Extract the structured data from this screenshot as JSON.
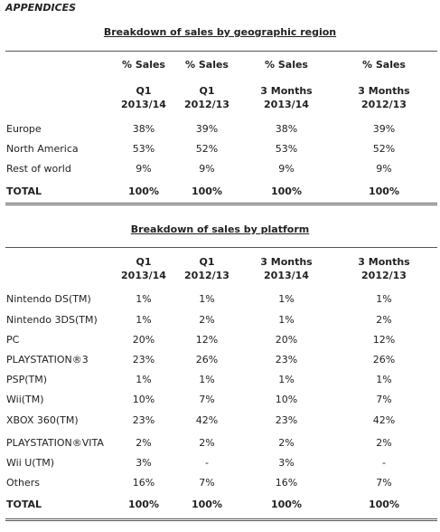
{
  "appendices": "APPENDICES",
  "region": {
    "title": "Breakdown of sales by geographic region",
    "head1": [
      "% Sales",
      "% Sales",
      "% Sales",
      "% Sales"
    ],
    "head2a": [
      "Q1",
      "Q1",
      "3 Months",
      "3 Months"
    ],
    "head2b": [
      "2013/14",
      "2012/13",
      "2013/14",
      "2012/13"
    ],
    "rows": [
      {
        "label": "Europe",
        "values": [
          "38%",
          "39%",
          "38%",
          "39%"
        ]
      },
      {
        "label": "North America",
        "values": [
          "53%",
          "52%",
          "53%",
          "52%"
        ]
      },
      {
        "label": "Rest of world",
        "values": [
          "9%",
          "9%",
          "9%",
          "9%"
        ]
      }
    ],
    "total": {
      "label": "TOTAL",
      "values": [
        "100%",
        "100%",
        "100%",
        "100%"
      ]
    }
  },
  "platform": {
    "title": "Breakdown of sales by platform",
    "head2a": [
      "Q1",
      "Q1",
      "3 Months",
      "3 Months"
    ],
    "head2b": [
      "2013/14",
      "2012/13",
      "2013/14",
      "2012/13"
    ],
    "rows": [
      {
        "label": "Nintendo DS(TM)",
        "values": [
          "1%",
          "1%",
          "1%",
          "1%"
        ]
      },
      {
        "label": "Nintendo 3DS(TM)",
        "values": [
          "1%",
          "2%",
          "1%",
          "2%"
        ]
      },
      {
        "label": "PC",
        "values": [
          "20%",
          "12%",
          "20%",
          "12%"
        ]
      },
      {
        "label": "PLAYSTATION®3",
        "values": [
          "23%",
          "26%",
          "23%",
          "26%"
        ]
      },
      {
        "label": "PSP(TM)",
        "values": [
          "1%",
          "1%",
          "1%",
          "1%"
        ]
      },
      {
        "label": "Wii(TM)",
        "values": [
          "10%",
          "7%",
          "10%",
          "7%"
        ]
      },
      {
        "label": "XBOX 360(TM)",
        "values": [
          "23%",
          "42%",
          "23%",
          "42%"
        ]
      },
      {
        "label": "PLAYSTATION®VITA",
        "values": [
          "2%",
          "2%",
          "2%",
          "2%"
        ]
      },
      {
        "label": "Wii U(TM)",
        "values": [
          "3%",
          "-",
          "3%",
          "-"
        ]
      },
      {
        "label": "Others",
        "values": [
          "16%",
          "7%",
          "16%",
          "7%"
        ]
      }
    ],
    "total": {
      "label": "TOTAL",
      "values": [
        "100%",
        "100%",
        "100%",
        "100%"
      ]
    }
  }
}
